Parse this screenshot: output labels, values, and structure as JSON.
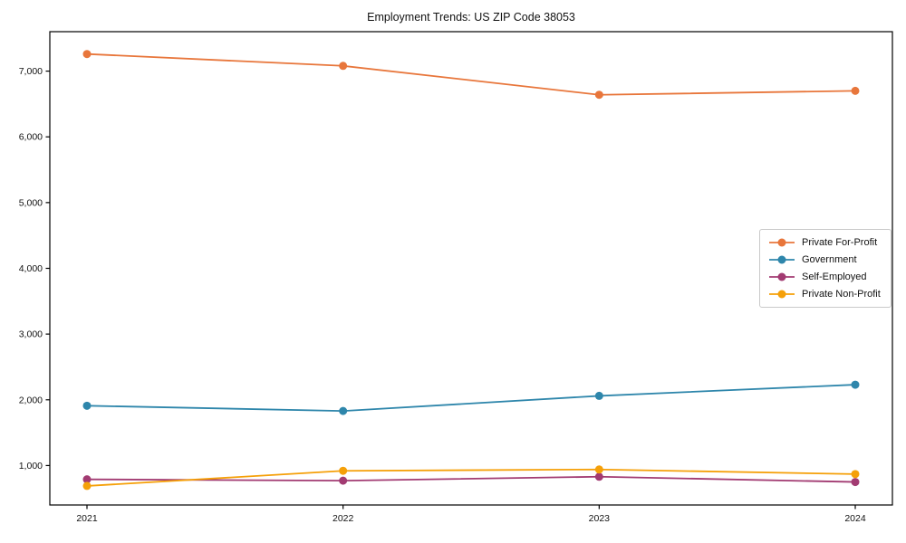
{
  "chart_data": {
    "type": "line",
    "title": "Employment Trends: US ZIP Code 38053",
    "xlabel": "",
    "ylabel": "",
    "x": [
      2021,
      2022,
      2023,
      2024
    ],
    "x_tick_labels": [
      "2021",
      "2022",
      "2023",
      "2024"
    ],
    "y_tick_values": [
      1000,
      2000,
      3000,
      4000,
      5000,
      6000,
      7000
    ],
    "y_tick_labels": [
      "1,000",
      "2,000",
      "3,000",
      "4,000",
      "5,000",
      "6,000",
      "7,000"
    ],
    "ylim": [
      400,
      7600
    ],
    "grid": false,
    "legend_position": "center-right",
    "marker": "circle",
    "series": [
      {
        "name": "Private For-Profit",
        "color": "#E8763B",
        "values": [
          7260,
          7080,
          6640,
          6700
        ]
      },
      {
        "name": "Government",
        "color": "#2E86AB",
        "values": [
          1910,
          1830,
          2060,
          2230
        ]
      },
      {
        "name": "Self-Employed",
        "color": "#A23B72",
        "values": [
          790,
          770,
          830,
          750
        ]
      },
      {
        "name": "Private Non-Profit",
        "color": "#F5A009",
        "values": [
          690,
          920,
          940,
          870
        ]
      }
    ]
  }
}
